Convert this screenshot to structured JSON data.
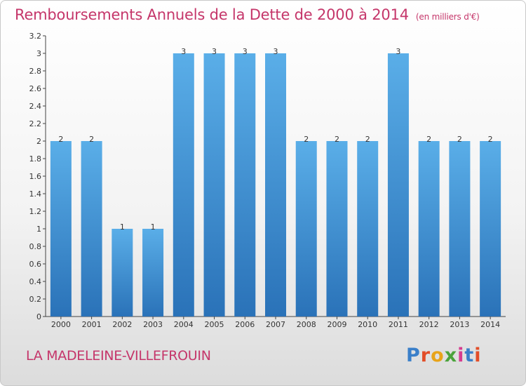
{
  "chart_data": {
    "type": "bar",
    "title": "Remboursements Annuels de la Dette de 2000 à 2014",
    "subtitle": "(en milliers d'€)",
    "categories": [
      "2000",
      "2001",
      "2002",
      "2003",
      "2004",
      "2005",
      "2006",
      "2007",
      "2008",
      "2009",
      "2010",
      "2011",
      "2012",
      "2013",
      "2014"
    ],
    "values": [
      2,
      2,
      1,
      1,
      3,
      3,
      3,
      3,
      2,
      2,
      2,
      3,
      2,
      2,
      2
    ],
    "data_labels": [
      "2",
      "2",
      "1",
      "1",
      "3",
      "3",
      "3",
      "3",
      "2",
      "2",
      "2",
      "3",
      "2",
      "2",
      "2"
    ],
    "ylim": [
      0,
      3.2
    ],
    "yticks": [
      "0",
      "0.2",
      "0.4",
      "0.6",
      "0.8",
      "1",
      "1.2",
      "1.4",
      "1.6",
      "1.8",
      "2",
      "2.2",
      "2.4",
      "2.6",
      "2.8",
      "3",
      "3.2"
    ],
    "xlabel": "",
    "ylabel": "",
    "grid": false,
    "bar_color": "#4b9fe0",
    "bar_color_dark": "#2f79c0"
  },
  "footer": {
    "place_name": "LA MADELEINE-VILLEFROUIN",
    "logo_letters": [
      "P",
      "r",
      "o",
      "x",
      "i",
      "t",
      "i"
    ]
  },
  "colors": {
    "title": "#c5366a",
    "place": "#c5366a"
  }
}
